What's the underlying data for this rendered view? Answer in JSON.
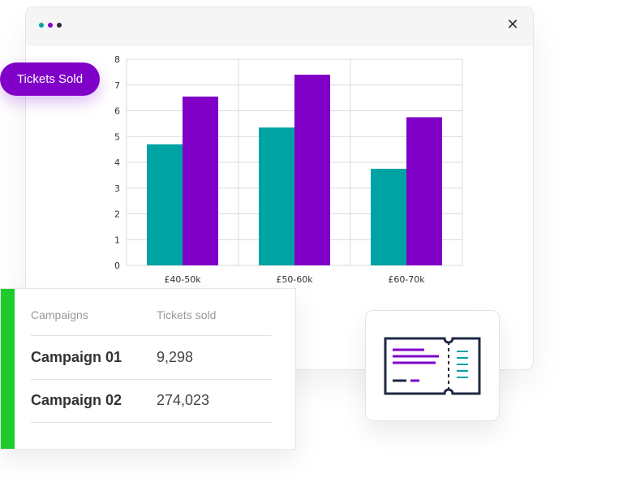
{
  "window": {
    "dots": [
      {
        "color": "#00a3a3",
        "name": "dot-teal"
      },
      {
        "color": "#8000c8",
        "name": "dot-purple"
      },
      {
        "color": "#2c2c3a",
        "name": "dot-dark"
      }
    ],
    "close_label": "✕"
  },
  "badge": {
    "label": "Tickets Sold"
  },
  "chart_data": {
    "type": "bar",
    "categories": [
      "£40-50k",
      "£50-60k",
      "£60-70k"
    ],
    "series": [
      {
        "values": [
          4.7,
          5.35,
          3.75
        ],
        "color": "#00a3a3"
      },
      {
        "values": [
          6.55,
          7.4,
          5.75
        ],
        "color": "#8000c8"
      }
    ],
    "ylim": [
      0,
      8
    ],
    "yticks": [
      "0",
      "1",
      "2",
      "3",
      "4",
      "5",
      "6",
      "7",
      "8"
    ],
    "grid": true
  },
  "table": {
    "accent_color": "#1ecb2a",
    "headers": [
      "Campaigns",
      "Tickets sold"
    ],
    "rows": [
      {
        "name": "Campaign 01",
        "value": "9,298"
      },
      {
        "name": "Campaign 02",
        "value": "274,023"
      }
    ]
  },
  "ticket_icon": {
    "name": "ticket-icon",
    "outline": "#1e2a44",
    "purple": "#8000c8",
    "teal": "#00a3a3"
  }
}
